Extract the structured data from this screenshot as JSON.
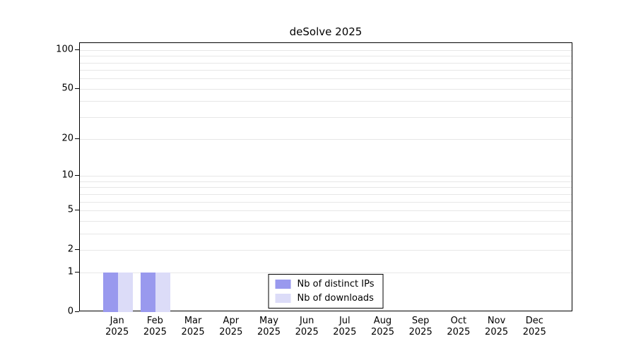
{
  "chart_data": {
    "type": "bar",
    "title": "deSolve 2025",
    "categories": [
      "Jan",
      "Feb",
      "Mar",
      "Apr",
      "May",
      "Jun",
      "Jul",
      "Aug",
      "Sep",
      "Oct",
      "Nov",
      "Dec"
    ],
    "x_year": "2025",
    "series": [
      {
        "name": "Nb of distinct IPs",
        "color": "#9999ee",
        "values": [
          1,
          1,
          0,
          0,
          0,
          0,
          0,
          0,
          0,
          0,
          0,
          0
        ]
      },
      {
        "name": "Nb of downloads",
        "color": "#dcdcf8",
        "values": [
          1,
          1,
          0,
          0,
          0,
          0,
          0,
          0,
          0,
          0,
          0,
          0
        ]
      }
    ],
    "y_ticks": [
      0,
      1,
      2,
      5,
      10,
      20,
      50,
      100
    ],
    "y_minor_gridlines": [
      1,
      2,
      3,
      4,
      5,
      6,
      7,
      8,
      9,
      10,
      20,
      30,
      40,
      50,
      60,
      70,
      80,
      90,
      100
    ],
    "y_scale": "log1p",
    "ylim": [
      0,
      113
    ],
    "grid": "horizontal-minor",
    "legend_position": "bottom-center",
    "gridline_color": "#e7e7e7"
  }
}
